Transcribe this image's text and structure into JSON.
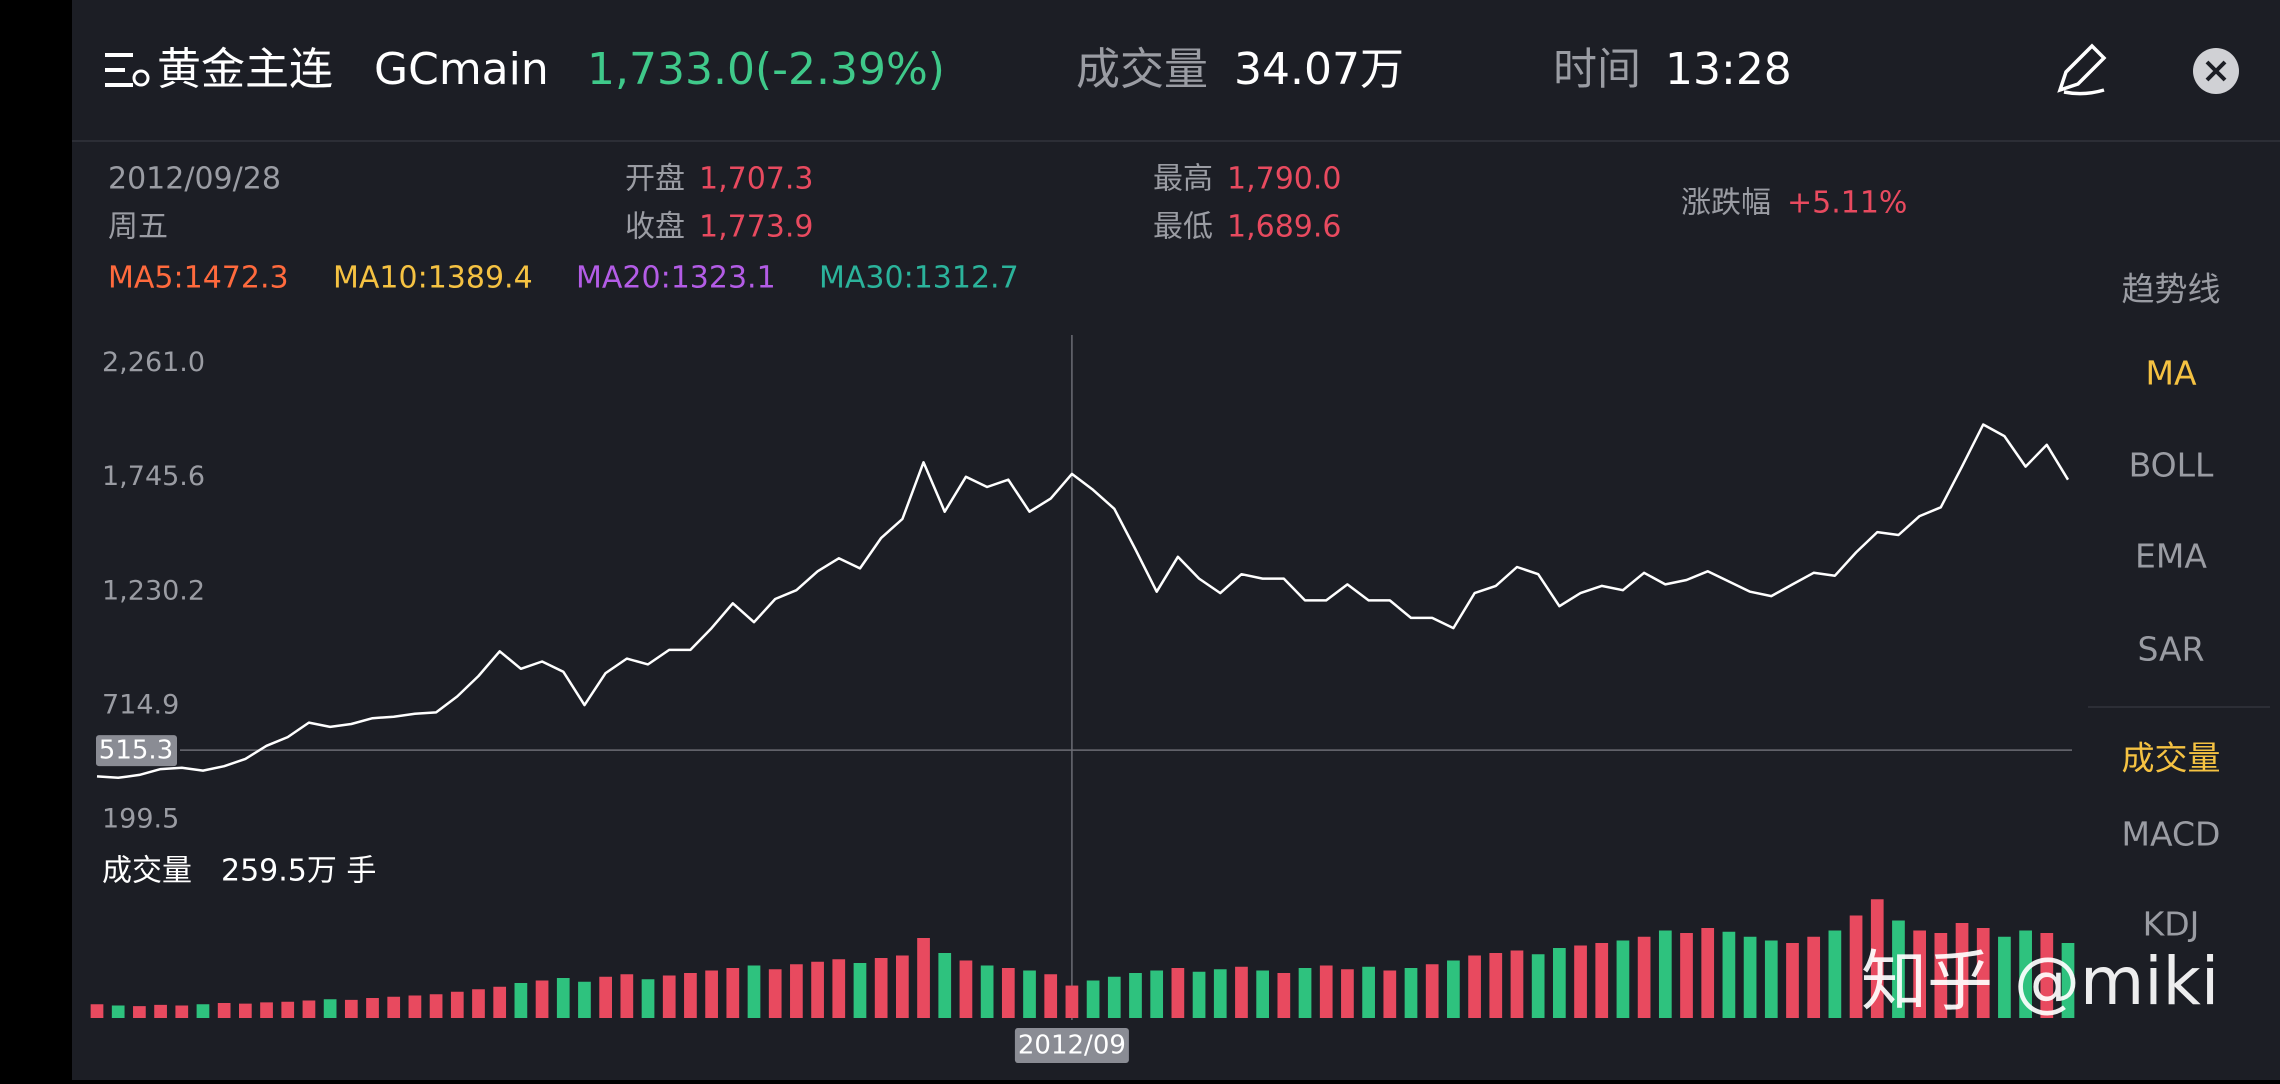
{
  "header": {
    "title": "黄金主连",
    "code": "GCmain",
    "price": "1,733.0(-2.39%)",
    "volume_label": "成交量",
    "volume_value": "34.07万",
    "time_label": "时间",
    "time_value": "13:28"
  },
  "info": {
    "date": "2012/09/28",
    "weekday": "周五",
    "open_label": "开盘",
    "open": "1,707.3",
    "close_label": "收盘",
    "close": "1,773.9",
    "high_label": "最高",
    "high": "1,790.0",
    "low_label": "最低",
    "low": "1,689.6",
    "change_label": "涨跌幅",
    "change": "+5.11%",
    "ma": [
      {
        "text": "MA5:1472.3",
        "color": "#ff6a3d"
      },
      {
        "text": "MA10:1389.4",
        "color": "#f5c242"
      },
      {
        "text": "MA20:1323.1",
        "color": "#b35ce6"
      },
      {
        "text": "MA30:1312.7",
        "color": "#2bb39b"
      }
    ]
  },
  "menu": {
    "main": [
      "趋势线",
      "MA",
      "BOLL",
      "EMA",
      "SAR"
    ],
    "sub": [
      "成交量",
      "MACD",
      "KDJ"
    ]
  },
  "volume_panel": {
    "label": "成交量",
    "value_text": "259.5万 手"
  },
  "watermark": "知乎 @miki",
  "chart_data": {
    "type": "line",
    "crosshair_value": 515.3,
    "crosshair_label": "2012/09",
    "color": "#ffffff",
    "up_color": "#e84a5f",
    "down_color": "#2ec27e",
    "ylim": [
      199.5,
      2261.0
    ],
    "yticks": [
      {
        "value": 2261.0,
        "label": "2,261.0"
      },
      {
        "value": 1745.6,
        "label": "1,745.6"
      },
      {
        "value": 1230.2,
        "label": "1,230.2"
      },
      714.9,
      199.5
    ],
    "values": [
      396.5,
      389.9,
      403.1,
      429.3,
      435.9,
      422.8,
      442.5,
      475.3,
      534.4,
      573.8,
      639.5,
      619.8,
      632.9,
      659.2,
      665.8,
      678.9,
      685.5,
      757.7,
      849.6,
      961.3,
      882.5,
      915.3,
      869.3,
      718.3,
      862.8,
      928.4,
      902.2,
      967.8,
      967.8,
      1066.3,
      1178,
      1092.6,
      1197.7,
      1237.1,
      1322.5,
      1381.5,
      1335.6,
      1473.5,
      1558.9,
      1815,
      1591.7,
      1749.3,
      1703.3,
      1736.2,
      1591.7,
      1650.8,
      1762.5,
      1690.2,
      1604.8,
      1421,
      1230.5,
      1388.1,
      1289.6,
      1224,
      1309.3,
      1289.6,
      1289.6,
      1191.1,
      1191.1,
      1263.4,
      1191.1,
      1191.1,
      1112.3,
      1112.3,
      1066.3,
      1224,
      1256.8,
      1342.2,
      1309.3,
      1164.8,
      1224,
      1256.8,
      1237.1,
      1315.9,
      1263.4,
      1283.1,
      1322.5,
      1276.5,
      1230.5,
      1210.8,
      1263.4,
      1315.9,
      1302.8,
      1407.8,
      1499.8,
      1486.6,
      1572,
      1611.4,
      1795.3,
      1985.7,
      1933.2,
      1795.3,
      1893.8,
      1736.2
    ],
    "volumes": [
      110,
      100,
      95,
      105,
      100,
      110,
      120,
      115,
      125,
      130,
      140,
      150,
      145,
      160,
      170,
      180,
      190,
      210,
      230,
      250,
      280,
      300,
      320,
      290,
      330,
      350,
      310,
      340,
      360,
      380,
      400,
      420,
      390,
      430,
      450,
      470,
      440,
      480,
      500,
      640,
      520,
      460,
      420,
      400,
      380,
      350,
      259.5,
      300,
      330,
      360,
      380,
      400,
      370,
      390,
      410,
      380,
      360,
      400,
      420,
      390,
      410,
      380,
      400,
      430,
      460,
      500,
      520,
      540,
      510,
      560,
      580,
      600,
      620,
      650,
      700,
      680,
      720,
      690,
      650,
      620,
      600,
      650,
      700,
      820,
      950,
      780,
      700,
      680,
      760,
      720,
      650,
      700,
      680,
      600
    ]
  }
}
